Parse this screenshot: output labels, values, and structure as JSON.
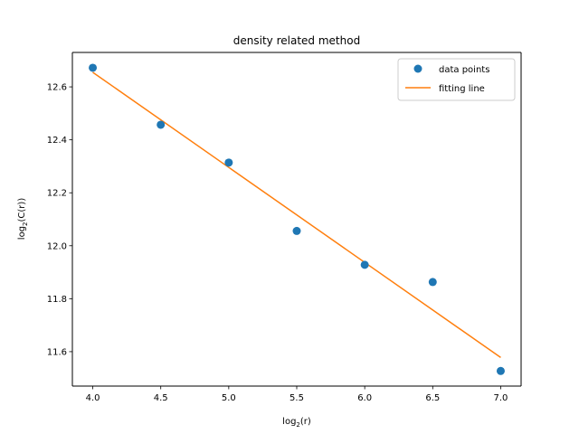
{
  "chart_data": {
    "type": "scatter",
    "title": "density related method",
    "xlabel_base": "log",
    "xlabel_sub": "2",
    "xlabel_arg": "(r)",
    "ylabel_base": "log",
    "ylabel_sub": "2",
    "ylabel_arg": "(C(r))",
    "xlim": [
      3.85,
      7.15
    ],
    "ylim": [
      11.47,
      12.73
    ],
    "xticks": [
      4.0,
      4.5,
      5.0,
      5.5,
      6.0,
      6.5,
      7.0
    ],
    "xtick_labels": [
      "4.0",
      "4.5",
      "5.0",
      "5.5",
      "6.0",
      "6.5",
      "7.0"
    ],
    "yticks": [
      11.6,
      11.8,
      12.0,
      12.2,
      12.4,
      12.6
    ],
    "ytick_labels": [
      "11.6",
      "11.8",
      "12.0",
      "12.2",
      "12.4",
      "12.6"
    ],
    "grid": false,
    "legend_position": "top-right",
    "series": [
      {
        "name": "data points",
        "kind": "scatter",
        "color": "#1f77b4",
        "x": [
          4.0,
          4.5,
          5.0,
          5.5,
          6.0,
          6.5,
          7.0
        ],
        "y": [
          12.672,
          12.457,
          12.314,
          12.056,
          11.928,
          11.863,
          11.527
        ]
      },
      {
        "name": "fitting line",
        "kind": "line",
        "color": "#ff7f0e",
        "x": [
          4.0,
          7.0
        ],
        "y": [
          12.655,
          11.578
        ]
      }
    ]
  }
}
